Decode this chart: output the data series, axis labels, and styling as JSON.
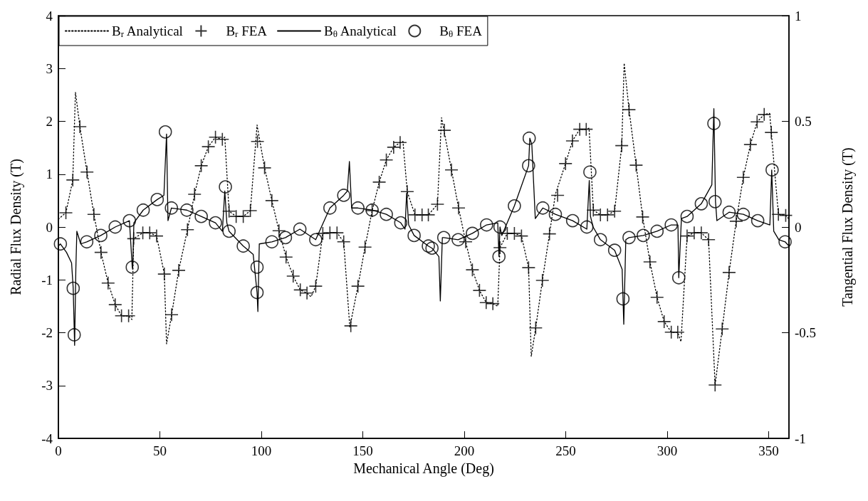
{
  "chart_data": {
    "type": "line",
    "xlabel": "Mechanical Angle (Deg)",
    "ylabel": "Radial Flux Density (T)",
    "y2label": "Tangential Flux Density (T)",
    "xlim": [
      0,
      360
    ],
    "xticks": [
      0,
      50,
      100,
      150,
      200,
      250,
      300,
      350
    ],
    "ylim": [
      -4,
      4
    ],
    "yticks": [
      -4,
      -3,
      -2,
      -1,
      0,
      1,
      2,
      3,
      4
    ],
    "y2lim": [
      -1,
      1
    ],
    "y2ticks": [
      -1,
      -0.5,
      0,
      0.5,
      1
    ],
    "grid": false,
    "legend": "top left",
    "series": [
      {
        "name": "B$_{r}$ Analytical",
        "line_style": "dotted",
        "marker": "none",
        "color": "#000000",
        "x": [
          0,
          3.7,
          7.1,
          8.4,
          10.6,
          14.1,
          17.5,
          21,
          24.5,
          28,
          31.1,
          34.6,
          36.2,
          37.1,
          41.6,
          45,
          48.4,
          52.2,
          53.3,
          55.8,
          59.3,
          63.6,
          67.1,
          70.4,
          73.9,
          77.4,
          80.8,
          82,
          84.1,
          87.6,
          91.1,
          94.6,
          97.9,
          101.6,
          105.2,
          108.7,
          112.2,
          115.7,
          119.2,
          122.5,
          124.5,
          126.8,
          130.3,
          133.8,
          137.3,
          140.6,
          143.6,
          147.6,
          151.1,
          154.6,
          158.1,
          161.6,
          165.2,
          168.4,
          169.8,
          171.9,
          175.7,
          179.2,
          182.3,
          186.8,
          188.8,
          193.7,
          197.2,
          200.7,
          204,
          207.5,
          210.8,
          214.1,
          216.5,
          217.6,
          221.2,
          224.7,
          228.2,
          231.7,
          233,
          235.2,
          238.5,
          242,
          244.9,
          249.9,
          253.3,
          256.9,
          260.1,
          261.5,
          263.6,
          267.1,
          270.6,
          274.1,
          277.6,
          278.8,
          281.2,
          284.7,
          287.9,
          291.5,
          295,
          298.5,
          302,
          305.2,
          306.8,
          309.8,
          313.3,
          316.8,
          320.4,
          323.6,
          327.1,
          330.5,
          334,
          337.5,
          341,
          344.3,
          347.8,
          350.5,
          351.3,
          354.8,
          358.4,
          360
        ],
        "values": [
          0.15,
          0.27,
          0.89,
          2.55,
          1.9,
          1.04,
          0.24,
          -0.48,
          -1.06,
          -1.47,
          -1.68,
          -1.68,
          -1.75,
          -0.22,
          -0.11,
          -0.11,
          -0.17,
          -0.89,
          -2.21,
          -1.66,
          -0.82,
          -0.05,
          0.62,
          1.16,
          1.52,
          1.7,
          1.66,
          1.7,
          0.3,
          0.2,
          0.2,
          0.31,
          1.93,
          1.12,
          0.5,
          -0.07,
          -0.57,
          -0.93,
          -1.19,
          -1.25,
          -1.32,
          -1.12,
          -0.12,
          -0.11,
          -0.11,
          -0.28,
          -1.9,
          -1.12,
          -0.38,
          0.31,
          0.85,
          1.27,
          1.51,
          1.6,
          1.62,
          0.67,
          0.23,
          0.23,
          0.23,
          0.43,
          2.07,
          1.08,
          0.36,
          -0.28,
          -0.81,
          -1.2,
          -1.43,
          -1.45,
          -1.5,
          -0.39,
          -0.12,
          -0.12,
          -0.17,
          -0.77,
          -2.45,
          -1.91,
          -1.01,
          -0.13,
          0.62,
          1.2,
          1.63,
          1.85,
          1.85,
          1.87,
          0.32,
          0.23,
          0.23,
          0.3,
          1.54,
          3.1,
          2.22,
          1.17,
          0.19,
          -0.66,
          -1.33,
          -1.79,
          -1.99,
          -1.99,
          -2.17,
          -0.17,
          -0.11,
          -0.11,
          -0.24,
          -2.99,
          -1.93,
          -0.86,
          0.11,
          0.94,
          1.56,
          1.99,
          2.13,
          2.15,
          1.79,
          0.24,
          0.22,
          0.15
        ]
      },
      {
        "name": "B$_{r}$ FEA",
        "type": "scatter",
        "marker": "cross",
        "color": "#000000",
        "x": [
          3.7,
          7.1,
          10.6,
          14.1,
          17.5,
          21,
          24.5,
          28,
          31.1,
          34.6,
          37.1,
          41.6,
          45,
          48.4,
          52.2,
          55.8,
          59.3,
          63.6,
          67.1,
          70.4,
          73.9,
          77.4,
          80.8,
          84.1,
          87.6,
          91.1,
          94.6,
          98.1,
          101.6,
          105.2,
          108.7,
          112.2,
          115.7,
          119.2,
          122.5,
          126.8,
          130.3,
          133.8,
          137.3,
          140.6,
          144.1,
          147.6,
          151.1,
          154.6,
          158.1,
          161.6,
          165.2,
          168.4,
          171.9,
          175.7,
          179.2,
          182.3,
          186.8,
          190.2,
          193.7,
          197.2,
          200.7,
          204,
          207.5,
          210.8,
          214.1,
          217.6,
          221.2,
          224.7,
          228.2,
          231.7,
          235.2,
          238.5,
          242,
          246,
          249.9,
          253.3,
          256.9,
          260.1,
          263.6,
          267.1,
          270.6,
          274.1,
          277.6,
          281.2,
          284.7,
          287.9,
          291.5,
          295,
          298.5,
          302,
          305.2,
          309.8,
          313.3,
          316.8,
          320.4,
          323.6,
          327.1,
          330.5,
          334,
          337.5,
          341,
          344.3,
          347.8,
          351.3,
          354.8,
          358.4
        ],
        "values": [
          0.27,
          0.89,
          1.9,
          1.04,
          0.24,
          -0.48,
          -1.06,
          -1.47,
          -1.68,
          -1.68,
          -0.22,
          -0.11,
          -0.11,
          -0.17,
          -0.89,
          -1.66,
          -0.82,
          -0.05,
          0.62,
          1.16,
          1.52,
          1.7,
          1.66,
          0.3,
          0.2,
          0.2,
          0.31,
          1.62,
          1.12,
          0.5,
          -0.07,
          -0.57,
          -0.93,
          -1.19,
          -1.25,
          -1.12,
          -0.12,
          -0.11,
          -0.11,
          -0.28,
          -1.87,
          -1.12,
          -0.38,
          0.31,
          0.85,
          1.27,
          1.51,
          1.6,
          0.67,
          0.23,
          0.23,
          0.23,
          0.43,
          1.83,
          1.08,
          0.36,
          -0.28,
          -0.81,
          -1.2,
          -1.43,
          -1.45,
          -0.39,
          -0.12,
          -0.12,
          -0.17,
          -0.77,
          -1.91,
          -1.01,
          -0.13,
          0.6,
          1.2,
          1.63,
          1.85,
          1.85,
          0.32,
          0.23,
          0.23,
          0.3,
          1.54,
          2.22,
          1.17,
          0.19,
          -0.66,
          -1.33,
          -1.79,
          -1.99,
          -1.99,
          -0.17,
          -0.11,
          -0.11,
          -0.24,
          -2.99,
          -1.93,
          -0.86,
          0.11,
          0.94,
          1.56,
          1.99,
          2.13,
          1.79,
          0.24,
          0.22
        ]
      },
      {
        "name": "B$_{θ}$ Analytical",
        "axis": "y2",
        "line_style": "solid",
        "marker": "none",
        "color": "#000000",
        "x": [
          0,
          1,
          4,
          6.5,
          7.3,
          8,
          8.6,
          9.1,
          11,
          14,
          20.9,
          28,
          35,
          36.4,
          36.6,
          37.2,
          41.8,
          48.7,
          52,
          53.3,
          54,
          55.7,
          63.3,
          70.4,
          77.4,
          80.8,
          82,
          83,
          84.1,
          91.1,
          96,
          97.9,
          98.3,
          99,
          105.2,
          111.9,
          119,
          126.8,
          133.8,
          140.6,
          142.4,
          143.4,
          144.5,
          147.6,
          154.6,
          161.6,
          168.7,
          170.8,
          171.6,
          172.6,
          175.3,
          182.3,
          184.1,
          187.5,
          188.2,
          189.2,
          189.9,
          197,
          204,
          211,
          216.5,
          217.1,
          217.6,
          218.5,
          224.7,
          231.7,
          232.3,
          233.3,
          235,
          238.7,
          244.9,
          253.4,
          260.4,
          261.6,
          262.2,
          263.5,
          267.1,
          274.1,
          277.8,
          278.6,
          279.6,
          281.2,
          288.2,
          295,
          302,
          305.3,
          305.7,
          307,
          309.8,
          316.8,
          322,
          323,
          323.8,
          324.5,
          330.5,
          337.5,
          344.6,
          350.6,
          351.5,
          352.5,
          355,
          358.1,
          360
        ],
        "values": [
          -0.09,
          -0.08,
          -0.12,
          -0.17,
          -0.29,
          -0.56,
          -0.2,
          -0.02,
          -0.08,
          -0.07,
          -0.04,
          0,
          0.03,
          -0.19,
          -0.2,
          0.02,
          0.08,
          0.13,
          0.15,
          0.44,
          0.03,
          0.09,
          0.08,
          0.05,
          0.02,
          -0.02,
          0.17,
          0.02,
          -0.02,
          -0.09,
          -0.13,
          -0.31,
          -0.4,
          -0.08,
          -0.07,
          -0.05,
          -0.01,
          -0.06,
          0.09,
          0.15,
          0.17,
          0.31,
          0.09,
          0.09,
          0.08,
          0.06,
          0.02,
          -0.01,
          0.16,
          0.01,
          -0.04,
          -0.09,
          -0.1,
          -0.14,
          -0.35,
          -0.05,
          -0.05,
          -0.06,
          -0.03,
          0.01,
          0.02,
          -0.14,
          0,
          -0.04,
          0.1,
          0.29,
          0.42,
          0.39,
          0.04,
          0.09,
          0.06,
          0.03,
          -0.01,
          0.22,
          0.05,
          0,
          -0.06,
          -0.11,
          -0.2,
          -0.46,
          -0.06,
          -0.05,
          -0.04,
          -0.02,
          0.01,
          0.01,
          -0.24,
          0.04,
          0.05,
          0.11,
          0.2,
          0.56,
          0.12,
          0.03,
          0.07,
          0.06,
          0.03,
          0.01,
          0.27,
          -0.02,
          -0.06,
          -0.07,
          -0.09
        ]
      },
      {
        "name": "B$_{θ}$ FEA",
        "type": "scatter",
        "axis": "y2",
        "marker": "circle",
        "color": "#000000",
        "x": [
          1,
          7.3,
          7.8,
          14,
          20.9,
          28,
          35,
          36.4,
          41.8,
          48.7,
          52.7,
          55.7,
          63.3,
          70.4,
          77.4,
          82.3,
          84.1,
          91.1,
          97.9,
          97.9,
          105.2,
          111.9,
          119,
          126.8,
          133.8,
          140.6,
          147.6,
          154.6,
          161.6,
          168.7,
          175.3,
          182.3,
          184.1,
          189.9,
          197,
          204,
          211,
          217.1,
          217.6,
          224.7,
          231.7,
          232,
          238.7,
          244.9,
          253.4,
          260.4,
          261.9,
          267.1,
          274.1,
          278.2,
          281.2,
          288.2,
          295,
          302,
          305.7,
          309.8,
          316.8,
          323,
          323.6,
          330.5,
          337.5,
          344.6,
          351.7,
          358.1
        ],
        "values": [
          -0.08,
          -0.29,
          -0.51,
          -0.07,
          -0.04,
          0,
          0.03,
          -0.19,
          0.08,
          0.13,
          0.45,
          0.09,
          0.08,
          0.05,
          0.02,
          0.19,
          -0.02,
          -0.09,
          -0.19,
          -0.31,
          -0.07,
          -0.05,
          -0.01,
          -0.06,
          0.09,
          0.15,
          0.09,
          0.08,
          0.06,
          0.02,
          -0.04,
          -0.09,
          -0.1,
          -0.05,
          -0.06,
          -0.03,
          0.01,
          -0.14,
          0,
          0.1,
          0.29,
          0.42,
          0.09,
          0.06,
          0.03,
          0,
          0.26,
          -0.06,
          -0.11,
          -0.34,
          -0.05,
          -0.04,
          -0.02,
          0.01,
          -0.24,
          0.05,
          0.11,
          0.49,
          0.12,
          0.07,
          0.06,
          0.03,
          0.27,
          -0.07
        ]
      }
    ]
  }
}
